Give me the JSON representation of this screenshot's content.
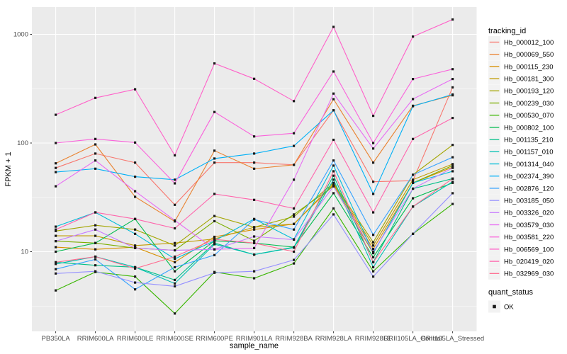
{
  "chart_data": {
    "type": "line",
    "title": "",
    "xlabel": "sample_name",
    "ylabel": "FPKM + 1",
    "y_scale": "log10",
    "y_ticks": [
      {
        "value": 10,
        "label": "10"
      },
      {
        "value": 100,
        "label": "100"
      },
      {
        "value": 1000,
        "label": "1000"
      }
    ],
    "y_minor_ticks": [
      3.1623,
      31.623,
      316.23
    ],
    "ylim": [
      1.9,
      1780
    ],
    "grid": true,
    "panel_bg": "#EBEBEB",
    "grid_color": "#FFFFFF",
    "tick_label_color": "#4D4D4D",
    "point_color": "#1A1A1A",
    "categories": [
      "PB350LA",
      "RRIM600LA",
      "RRIM600LE",
      "RRIM600SE",
      "RRIM600PE",
      "RRIM901LA",
      "RRIM928BA",
      "RRIM928LA",
      "RRIM928LE",
      "RRII105LA_Control",
      "RRII105LA_Stressed"
    ],
    "legend": {
      "title": "tracking_id",
      "position": "right"
    },
    "legend2": {
      "title": "quant_status",
      "items": [
        {
          "label": "OK",
          "marker": "square"
        }
      ]
    },
    "series": [
      {
        "name": "Hb_000012_100",
        "color": "#F8766D",
        "values": [
          59,
          80,
          66,
          27,
          66,
          66,
          63,
          200,
          44,
          45,
          325
        ]
      },
      {
        "name": "Hb_000069_550",
        "color": "#EA8331",
        "values": [
          65,
          97,
          32,
          19,
          85,
          58,
          63,
          253,
          66,
          220,
          275
        ]
      },
      {
        "name": "Hb_000115_230",
        "color": "#D89000",
        "values": [
          11,
          10.5,
          11,
          8,
          13.7,
          16,
          18,
          41,
          10.6,
          43,
          60
        ]
      },
      {
        "name": "Hb_000181_300",
        "color": "#C09B00",
        "values": [
          14,
          14,
          11.4,
          12,
          13.1,
          16.8,
          18,
          42,
          11.4,
          46,
          64
        ]
      },
      {
        "name": "Hb_000193_120",
        "color": "#A3A500",
        "values": [
          15.5,
          17.5,
          16,
          11.4,
          21.3,
          16.8,
          21,
          43,
          12.2,
          51,
          96
        ]
      },
      {
        "name": "Hb_000239_030",
        "color": "#7CAE00",
        "values": [
          12.5,
          12,
          10.8,
          10.3,
          19.1,
          12.6,
          22,
          40,
          9.7,
          43,
          62
        ]
      },
      {
        "name": "Hb_000530_070",
        "color": "#39B600",
        "values": [
          4.4,
          6.5,
          5.9,
          2.7,
          6.5,
          5.7,
          7.8,
          25,
          6.6,
          14.6,
          27.5
        ]
      },
      {
        "name": "Hb_000802_100",
        "color": "#00BB4E",
        "values": [
          10,
          12,
          20,
          6.6,
          12.6,
          12,
          11,
          34.5,
          8.9,
          31,
          43
        ]
      },
      {
        "name": "Hb_001135_210",
        "color": "#00C087",
        "values": [
          8,
          7.5,
          7.2,
          5.5,
          12,
          9.4,
          11,
          50,
          8,
          38,
          47
        ]
      },
      {
        "name": "Hb_001157_010",
        "color": "#00C0B2",
        "values": [
          7.7,
          9,
          7.2,
          5.1,
          11.7,
          9.4,
          10.9,
          46,
          7.2,
          26,
          44
        ]
      },
      {
        "name": "Hb_001314_040",
        "color": "#00BCD8",
        "values": [
          17,
          23,
          14.6,
          8.6,
          12.6,
          20,
          13,
          62,
          9.7,
          43,
          55
        ]
      },
      {
        "name": "Hb_002374_390",
        "color": "#00B0F6",
        "values": [
          54,
          58,
          49,
          46,
          72,
          80,
          94,
          200,
          34,
          218,
          280
        ]
      },
      {
        "name": "Hb_002876_120",
        "color": "#35A2FF",
        "values": [
          6.9,
          8.5,
          4.5,
          7.2,
          9.3,
          19.8,
          16,
          69,
          14.3,
          51,
          74
        ]
      },
      {
        "name": "Hb_003185_050",
        "color": "#9590FF",
        "values": [
          6.3,
          6.6,
          5.2,
          4.8,
          6.4,
          6.6,
          8.4,
          22,
          5.9,
          14.6,
          34.5
        ]
      },
      {
        "name": "Hb_003326_020",
        "color": "#C77CFF",
        "values": [
          12.5,
          16,
          10.8,
          10.3,
          10.5,
          13.8,
          12.9,
          40,
          10,
          38,
          59
        ]
      },
      {
        "name": "Hb_003579_030",
        "color": "#E76BF3",
        "values": [
          40,
          69,
          36,
          19.4,
          10.5,
          10.8,
          46,
          285,
          89,
          254,
          388
        ]
      },
      {
        "name": "Hb_003581_220",
        "color": "#FA62DB",
        "values": [
          100,
          109,
          101,
          42.5,
          193,
          115,
          123,
          455,
          100,
          388,
          478
        ]
      },
      {
        "name": "Hb_006569_100",
        "color": "#FF61C9",
        "values": [
          182,
          260,
          312,
          77,
          540,
          390,
          243,
          1170,
          178,
          953,
          1370
        ]
      },
      {
        "name": "Hb_020419_020",
        "color": "#FF65AC",
        "values": [
          16,
          23,
          20,
          16.4,
          34,
          30,
          25,
          107,
          23,
          109,
          170
        ]
      },
      {
        "name": "Hb_032969_030",
        "color": "#FF6C90",
        "values": [
          8,
          9,
          7,
          9,
          13,
          12,
          10,
          55,
          8,
          26,
          47
        ]
      }
    ]
  }
}
